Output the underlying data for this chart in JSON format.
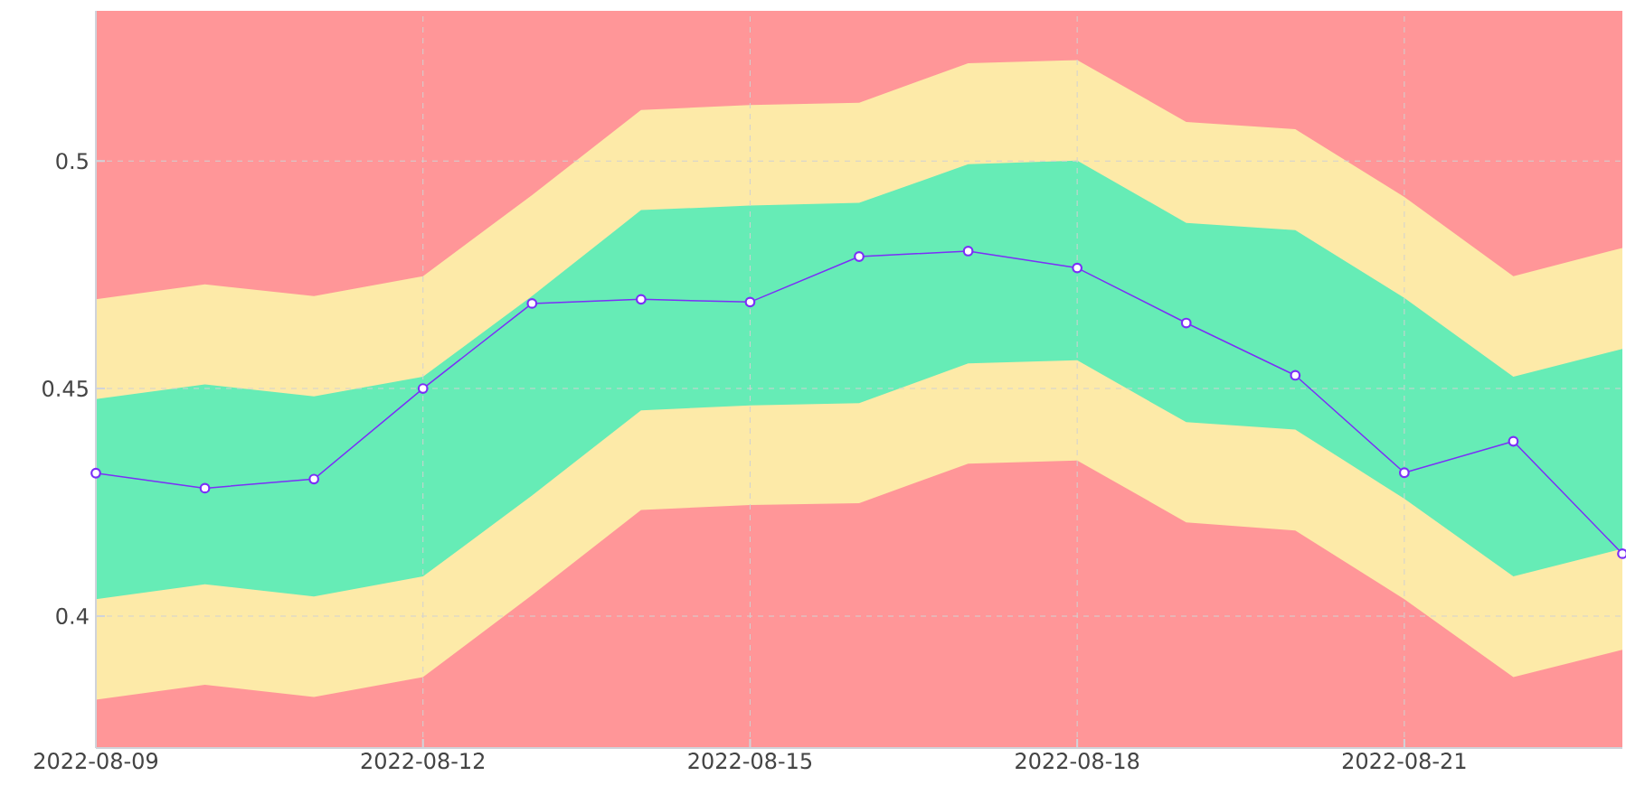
{
  "chart_data": {
    "type": "line",
    "x": [
      "2022-08-09",
      "2022-08-10",
      "2022-08-11",
      "2022-08-12",
      "2022-08-13",
      "2022-08-14",
      "2022-08-15",
      "2022-08-16",
      "2022-08-17",
      "2022-08-18",
      "2022-08-19",
      "2022-08-20",
      "2022-08-21",
      "2022-08-22",
      "2022-08-23"
    ],
    "xlim": [
      "2022-08-09",
      "2022-08-23"
    ],
    "xticks": [
      "2022-08-09",
      "2022-08-12",
      "2022-08-15",
      "2022-08-18",
      "2022-08-21"
    ],
    "ylim": [
      0.371,
      0.533
    ],
    "yticks": [
      0.4,
      0.45,
      0.5
    ],
    "grid": true,
    "bands": [
      {
        "axis": "y",
        "from": 0.371,
        "to": 0.533,
        "color": "#ff9698"
      }
    ],
    "series": [
      {
        "type": "area",
        "color": "#fdeaa8",
        "values": [
          null,
          null,
          null,
          null,
          null,
          null,
          null,
          null,
          null,
          null,
          null,
          null,
          null,
          null,
          null
        ],
        "lower": [
          0.3816,
          0.3849,
          0.3822,
          0.3866,
          0.4046,
          0.4233,
          0.4244,
          0.4248,
          0.4335,
          0.4342,
          0.4206,
          0.4188,
          0.4037,
          0.3866,
          0.3926
        ],
        "upper": [
          0.4696,
          0.4729,
          0.4703,
          0.4747,
          0.4925,
          0.5112,
          0.5123,
          0.5128,
          0.5215,
          0.5222,
          0.5086,
          0.507,
          0.4921,
          0.4747,
          0.4809
        ]
      },
      {
        "type": "area",
        "color": "#66ecb6",
        "values": [
          null,
          null,
          null,
          null,
          null,
          null,
          null,
          null,
          null,
          null,
          null,
          null,
          null,
          null,
          null
        ],
        "lower": [
          0.4037,
          0.407,
          0.4043,
          0.4087,
          0.4265,
          0.4452,
          0.4463,
          0.4468,
          0.4555,
          0.4562,
          0.4426,
          0.441,
          0.4258,
          0.4087,
          0.4148
        ],
        "upper": [
          0.4477,
          0.4509,
          0.4483,
          0.4526,
          0.4703,
          0.4892,
          0.4902,
          0.4908,
          0.4993,
          0.5001,
          0.4864,
          0.4848,
          0.4699,
          0.4526,
          0.4587
        ]
      },
      {
        "type": "line",
        "color": "#7b2ff7",
        "marker": "circle",
        "values": [
          0.4314,
          0.4281,
          0.4301,
          0.45,
          0.4687,
          0.4696,
          0.469,
          0.479,
          0.4802,
          0.4765,
          0.4644,
          0.4529,
          0.4315,
          0.4384,
          0.4137
        ]
      }
    ]
  }
}
